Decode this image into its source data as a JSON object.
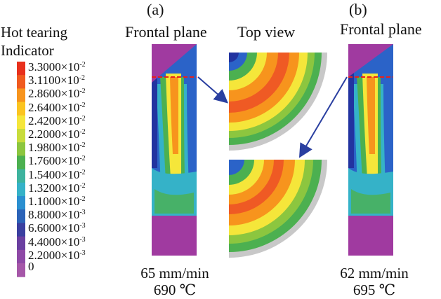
{
  "labels": {
    "a": "(a)",
    "b": "(b)"
  },
  "panel_titles": {
    "frontal_a": "Frontal plane",
    "top_view": "Top view",
    "frontal_b": "Frontal plane"
  },
  "legend": {
    "title_line1": "Hot tearing",
    "title_line2": "Indicator",
    "ticks": [
      {
        "mant": "3.3000",
        "exp": "-2",
        "color": "#e8301c"
      },
      {
        "mant": "3.1100",
        "exp": "-2",
        "color": "#f05a1e"
      },
      {
        "mant": "2.8600",
        "exp": "-2",
        "color": "#f7941d"
      },
      {
        "mant": "2.6400",
        "exp": "-2",
        "color": "#fbc420"
      },
      {
        "mant": "2.4200",
        "exp": "-2",
        "color": "#f5e63a"
      },
      {
        "mant": "2.2000",
        "exp": "-2",
        "color": "#c8dc3c"
      },
      {
        "mant": "1.9800",
        "exp": "-2",
        "color": "#8cc63f"
      },
      {
        "mant": "1.7600",
        "exp": "-2",
        "color": "#4cb050"
      },
      {
        "mant": "1.5400",
        "exp": "-2",
        "color": "#3db39e"
      },
      {
        "mant": "1.3200",
        "exp": "-2",
        "color": "#35b2c8"
      },
      {
        "mant": "1.1000",
        "exp": "-2",
        "color": "#2a8fd0"
      },
      {
        "mant": "8.8000",
        "exp": "-3",
        "color": "#2b63b8"
      },
      {
        "mant": "6.6000",
        "exp": "-3",
        "color": "#3a3fa0"
      },
      {
        "mant": "4.4000",
        "exp": "-3",
        "color": "#6a3fa0"
      },
      {
        "mant": "2.2000",
        "exp": "-3",
        "color": "#8e49a6"
      },
      {
        "mant": "0",
        "exp": "",
        "color": "#a557a8"
      }
    ]
  },
  "captions": {
    "a_speed": "65 mm/min",
    "a_temp": "690 ℃",
    "b_speed": "62 mm/min",
    "b_temp": "695 ℃"
  },
  "colors": {
    "purple": "#a03aa0",
    "dark_blue": "#2233a0",
    "blue": "#2b63c8",
    "cyan": "#35b2c8",
    "green": "#4cb050",
    "yellow": "#f5e63a",
    "orange": "#f7941d",
    "red_orange": "#ef5a24",
    "grey": "#c8c8c8",
    "dashed_line": "#e8201c",
    "arrow": "#2a3fa0"
  }
}
